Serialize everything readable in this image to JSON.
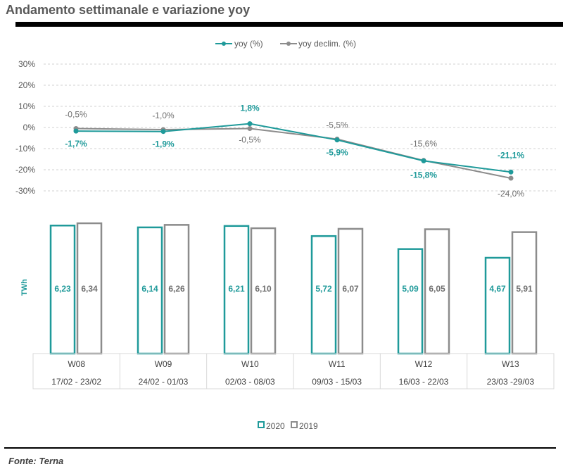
{
  "page": {
    "title": "Andamento settimanale e variazione yoy",
    "source": "Fonte: Terna"
  },
  "colors": {
    "teal": "#1f9a9a",
    "gray": "#8c8c8c",
    "grid": "#d0d0d0",
    "text": "#595959"
  },
  "chart_data": [
    {
      "type": "line",
      "legend_position": "top",
      "categories": [
        "W08",
        "W09",
        "W10",
        "W11",
        "W12",
        "W13"
      ],
      "ylim": [
        -30,
        30
      ],
      "yticks": [
        "30%",
        "20%",
        "10%",
        "0%",
        "-10%",
        "-20%",
        "-30%"
      ],
      "ytick_values": [
        30,
        20,
        10,
        0,
        -10,
        -20,
        -30
      ],
      "grid": true,
      "series": [
        {
          "name": "yoy (%)",
          "color": "teal",
          "values": [
            -1.7,
            -1.9,
            1.8,
            -5.9,
            -15.8,
            -21.1
          ],
          "labels": [
            "-1,7%",
            "-1,9%",
            "1,8%",
            "-5,9%",
            "-15,8%",
            "-21,1%"
          ]
        },
        {
          "name": "yoy declim. (%)",
          "color": "gray",
          "values": [
            -0.5,
            -1.0,
            -0.5,
            -5.5,
            -15.6,
            -24.0
          ],
          "labels": [
            "-0,5%",
            "-1,0%",
            "-0,5%",
            "-5,5%",
            "-15,6%",
            "-24,0%"
          ]
        }
      ]
    },
    {
      "type": "bar",
      "legend_position": "bottom",
      "ylabel": "TWh",
      "ylim": [
        0,
        6.34
      ],
      "categories": [
        "W08",
        "W09",
        "W10",
        "W11",
        "W12",
        "W13"
      ],
      "date_ranges": [
        "17/02 - 23/02",
        "24/02 - 01/03",
        "02/03 - 08/03",
        "09/03 - 15/03",
        "16/03 - 22/03",
        "23/03 -29/03"
      ],
      "series": [
        {
          "name": "2020",
          "color": "teal",
          "values": [
            6.23,
            6.14,
            6.21,
            5.72,
            5.09,
            4.67
          ],
          "labels": [
            "6,23",
            "6,14",
            "6,21",
            "5,72",
            "5,09",
            "4,67"
          ]
        },
        {
          "name": "2019",
          "color": "gray",
          "values": [
            6.34,
            6.26,
            6.1,
            6.07,
            6.05,
            5.91
          ],
          "labels": [
            "6,34",
            "6,26",
            "6,10",
            "6,07",
            "6,05",
            "5,91"
          ]
        }
      ]
    }
  ]
}
